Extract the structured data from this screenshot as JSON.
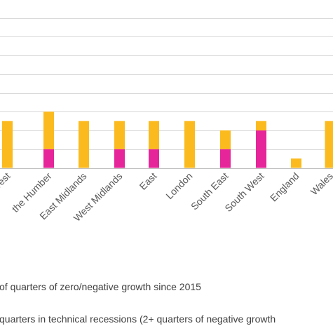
{
  "chart_data": {
    "type": "bar",
    "stacked": true,
    "categories": [
      "West",
      "the Humber",
      "East Midlands",
      "West Midlands",
      "East",
      "London",
      "South East",
      "South West",
      "England",
      "Wales"
    ],
    "series": [
      {
        "name": "quarters in technical recessions (2+ quarters of negative growth",
        "color": "#E6259A",
        "values": [
          0,
          2,
          0,
          2,
          2,
          0,
          2,
          4,
          0,
          0
        ]
      },
      {
        "name": "of quarters of zero/negative growth since 2015",
        "color": "#FBBA1E",
        "values": [
          5,
          4,
          5,
          3,
          3,
          5,
          2,
          1,
          1,
          5
        ]
      }
    ],
    "ylim": [
      0,
      18
    ],
    "grid": true,
    "legend_position": "bottom"
  }
}
